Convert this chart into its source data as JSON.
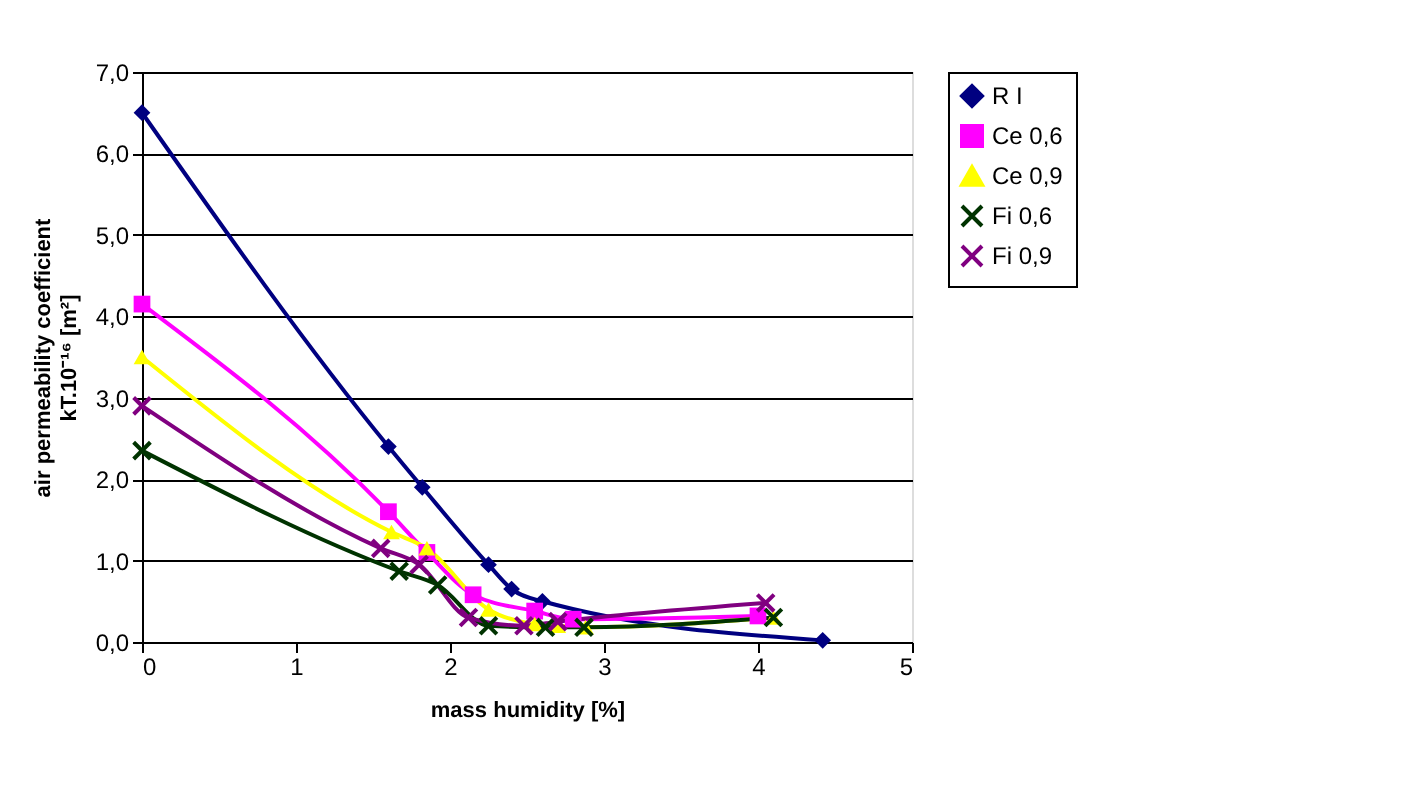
{
  "chart_data": {
    "type": "line",
    "xlabel": "mass humidity [%]",
    "ylabel": "air permeability coefficient\nkT.10⁻¹⁶ [m²]",
    "xlim": [
      0,
      5
    ],
    "xticks": [
      0,
      1,
      2,
      3,
      4,
      5
    ],
    "ylim": [
      0,
      7
    ],
    "yticks": [
      {
        "value": 0,
        "label": "0,0"
      },
      {
        "value": 1,
        "label": "1,0"
      },
      {
        "value": 2,
        "label": "2,0"
      },
      {
        "value": 3,
        "label": "3,0"
      },
      {
        "value": 4,
        "label": "4,0"
      },
      {
        "value": 5,
        "label": "5,0"
      },
      {
        "value": 6,
        "label": "6,0"
      },
      {
        "value": 7,
        "label": "7,0"
      }
    ],
    "grid": "y",
    "legend": "right",
    "series": [
      {
        "name": "R I",
        "color": "#000080",
        "marker": "diamond",
        "x": [
          0,
          1.6,
          1.82,
          2.25,
          2.4,
          2.6,
          4.42
        ],
        "values": [
          6.5,
          2.4,
          1.9,
          0.95,
          0.65,
          0.5,
          0.02
        ]
      },
      {
        "name": "Ce 0,6",
        "color": "#ff00ff",
        "marker": "square",
        "x": [
          0,
          1.6,
          1.85,
          2.15,
          2.55,
          2.8,
          4.0
        ],
        "values": [
          4.15,
          1.6,
          1.1,
          0.58,
          0.38,
          0.28,
          0.32
        ]
      },
      {
        "name": "Ce 0,9",
        "color": "#ffff00",
        "marker": "triangle",
        "x": [
          0,
          1.62,
          1.85,
          2.25,
          2.55,
          2.7,
          2.88,
          4.1
        ],
        "values": [
          3.5,
          1.35,
          1.15,
          0.4,
          0.22,
          0.2,
          0.18,
          0.3
        ]
      },
      {
        "name": "Fi 0,6",
        "color": "#003300",
        "marker": "cross",
        "x": [
          0,
          1.67,
          1.92,
          2.25,
          2.62,
          2.87,
          4.1
        ],
        "values": [
          2.35,
          0.87,
          0.7,
          0.2,
          0.18,
          0.18,
          0.3
        ]
      },
      {
        "name": "Fi 0,9",
        "color": "#800080",
        "marker": "cross",
        "x": [
          0,
          1.55,
          1.8,
          2.12,
          2.48,
          2.7,
          4.05
        ],
        "values": [
          2.9,
          1.15,
          0.95,
          0.3,
          0.2,
          0.25,
          0.48
        ]
      }
    ]
  }
}
